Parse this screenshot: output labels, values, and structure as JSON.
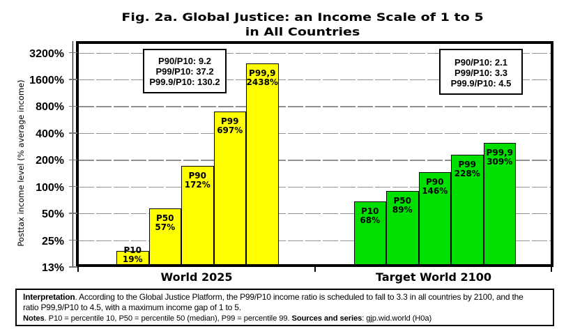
{
  "title": {
    "line1": "Fig. 2a. Global Justice: an Income Scale of 1 to 5",
    "line2": "in All Countries"
  },
  "y_axis": {
    "title": "Posttax income level (% average income)",
    "tick_labels": [
      "3200%",
      "1600%",
      "800%",
      "400%",
      "200%",
      "100%",
      "50%",
      "25%",
      "13%"
    ],
    "tick_values": [
      3200,
      1600,
      800,
      400,
      200,
      100,
      50,
      25,
      12.5
    ]
  },
  "chart_data": {
    "type": "bar",
    "y_scale": "log2",
    "ylim": [
      12.5,
      3200
    ],
    "ylabel": "Posttax income level (% average income)",
    "title": "Fig. 2a. Global Justice: an Income Scale of 1 to 5 in All Countries",
    "gridline_values": [
      3200,
      1600,
      800,
      400,
      200,
      100,
      50,
      25
    ],
    "categories": [
      "World 2025",
      "Target World 2100"
    ],
    "groups": [
      {
        "category": "World 2025",
        "color": "#FFFF00",
        "bars": [
          {
            "label": "P10",
            "value": 19,
            "value_label": "19%"
          },
          {
            "label": "P50",
            "value": 57,
            "value_label": "57%"
          },
          {
            "label": "P90",
            "value": 172,
            "value_label": "172%"
          },
          {
            "label": "P99",
            "value": 697,
            "value_label": "697%"
          },
          {
            "label": "P99,9",
            "value": 2438,
            "value_label": "2438%"
          }
        ]
      },
      {
        "category": "Target World 2100",
        "color": "#00E000",
        "bars": [
          {
            "label": "P10",
            "value": 68,
            "value_label": "68%"
          },
          {
            "label": "P50",
            "value": 89,
            "value_label": "89%"
          },
          {
            "label": "P90",
            "value": 146,
            "value_label": "146%"
          },
          {
            "label": "P99",
            "value": 228,
            "value_label": "228%"
          },
          {
            "label": "P99,9",
            "value": 309,
            "value_label": "309%"
          }
        ]
      }
    ],
    "annotations": [
      {
        "lines": [
          "P90/P10: 9.2",
          "P99/P10: 37.2",
          "P99.9/P10: 130.2"
        ]
      },
      {
        "lines": [
          "P90/P10: 2.1",
          "P99/P10: 3.3",
          "P99.9/P10: 4.5"
        ]
      }
    ]
  },
  "footer": {
    "interpretation_label": "Interpretation",
    "interpretation_text": ". According to the Global Justice Platform, the P99/P10 income ratio is scheduled to fall to 3.3 in all countries by 2100, and the ratio P99,9/P10 to 4.5, with a maximum income gap of 1 to 5.",
    "notes_label": "Notes",
    "notes_text": ". P10 = percentile 10, P50 = percentile 50 (median), P99 = percentile 99. ",
    "sources_label": "Sources and series",
    "sources_text": ": gjp.wid.world (H0a)"
  }
}
